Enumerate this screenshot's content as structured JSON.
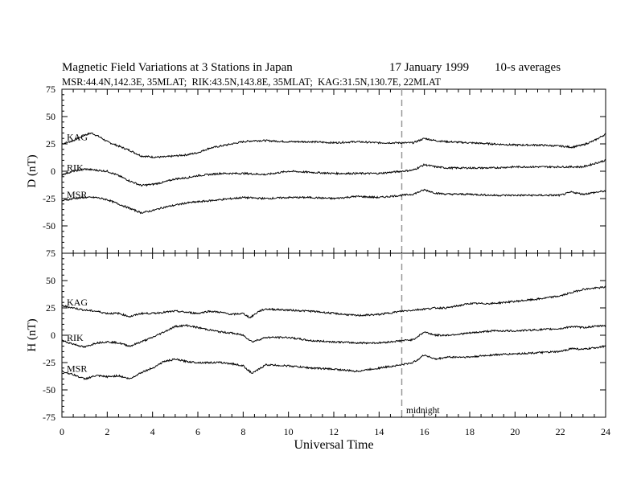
{
  "title": {
    "main": "Magnetic Field Variations at 3 Stations in Japan",
    "date": "17 January 1999",
    "averaging": "10-s averages",
    "stations_line": "MSR:44.4N,142.3E, 35MLAT;  RIK:43.5N,143.8E, 35MLAT;  KAG:31.5N,130.7E, 22MLAT"
  },
  "xlabel": "Universal Time",
  "midnight_label": "midnight",
  "colors": {
    "trace": "#000000",
    "marker": "#999999"
  },
  "chart_data": [
    {
      "type": "line",
      "ylabel": "D (nT)",
      "xlim": [
        0,
        24
      ],
      "ylim": [
        -75,
        75
      ],
      "xticks": [
        0,
        2,
        4,
        6,
        8,
        10,
        12,
        14,
        16,
        18,
        20,
        22,
        24
      ],
      "yticks": [
        -75,
        -50,
        -25,
        0,
        25,
        50,
        75
      ],
      "marker_x": 15,
      "series": [
        {
          "name": "KAG",
          "x": [
            0,
            0.5,
            1,
            1.3,
            1.7,
            2,
            2.5,
            3,
            3.5,
            4,
            4.5,
            5,
            5.5,
            6,
            6.5,
            7,
            7.5,
            8,
            8.5,
            9,
            10,
            11,
            12,
            13,
            14,
            15,
            15.5,
            16,
            16.5,
            17,
            18,
            19,
            20,
            21,
            22,
            22.5,
            23,
            23.5,
            24
          ],
          "values": [
            25,
            28,
            33,
            35,
            31,
            27,
            23,
            19,
            14,
            13,
            13,
            14,
            15,
            17,
            21,
            23,
            25,
            27,
            28,
            28,
            27,
            27,
            26,
            27,
            26,
            26,
            26,
            30,
            28,
            27,
            26,
            25,
            24,
            24,
            23,
            22,
            24,
            28,
            34
          ]
        },
        {
          "name": "RIK",
          "x": [
            0,
            0.5,
            1,
            1.5,
            2,
            2.5,
            3,
            3.5,
            4,
            4.5,
            5,
            5.5,
            6,
            7,
            8,
            9,
            10,
            11,
            12,
            13,
            14,
            15,
            15.5,
            16,
            16.5,
            17,
            18,
            19,
            20,
            21,
            22,
            23,
            23.5,
            24
          ],
          "values": [
            -3,
            0,
            2,
            1,
            0,
            -4,
            -9,
            -13,
            -12,
            -10,
            -7,
            -6,
            -4,
            -2,
            -2,
            -3,
            0,
            -1,
            -2,
            -2,
            -2,
            0,
            1,
            6,
            4,
            3,
            3,
            3,
            4,
            4,
            4,
            4,
            7,
            10
          ]
        },
        {
          "name": "MSR",
          "x": [
            0,
            0.5,
            1,
            1.5,
            2,
            2.5,
            3,
            3.5,
            4,
            4.5,
            5,
            5.5,
            6,
            7,
            8,
            9,
            10,
            11,
            12,
            13,
            14,
            15,
            15.5,
            16,
            16.5,
            17,
            18,
            19,
            20,
            21,
            22,
            22.5,
            23,
            24
          ],
          "values": [
            -27,
            -25,
            -24,
            -24,
            -26,
            -30,
            -34,
            -38,
            -36,
            -33,
            -31,
            -29,
            -28,
            -26,
            -24,
            -25,
            -24,
            -24,
            -25,
            -23,
            -24,
            -22,
            -21,
            -17,
            -20,
            -21,
            -21,
            -22,
            -22,
            -22,
            -22,
            -19,
            -21,
            -18
          ]
        }
      ]
    },
    {
      "type": "line",
      "ylabel": "H (nT)",
      "xlim": [
        0,
        24
      ],
      "ylim": [
        -75,
        75
      ],
      "xticks": [
        0,
        2,
        4,
        6,
        8,
        10,
        12,
        14,
        16,
        18,
        20,
        22,
        24
      ],
      "yticks": [
        -75,
        -50,
        -25,
        0,
        25,
        50,
        75
      ],
      "marker_x": 15,
      "series": [
        {
          "name": "KAG",
          "x": [
            0,
            0.5,
            1,
            1.5,
            2,
            2.5,
            3,
            3.5,
            4,
            4.5,
            5,
            5.5,
            6,
            6.5,
            7,
            7.5,
            8,
            8.3,
            8.7,
            9,
            10,
            11,
            12,
            13,
            14,
            15,
            15.5,
            16,
            16.5,
            17,
            18,
            19,
            20,
            21,
            22,
            23,
            24
          ],
          "values": [
            27,
            25,
            23,
            22,
            20,
            20,
            17,
            20,
            20,
            21,
            22,
            21,
            20,
            22,
            21,
            19,
            20,
            16,
            22,
            24,
            23,
            22,
            20,
            18,
            19,
            22,
            23,
            24,
            25,
            25,
            29,
            29,
            31,
            33,
            36,
            42,
            44
          ]
        },
        {
          "name": "RIK",
          "x": [
            0,
            0.5,
            1,
            1.5,
            2,
            2.5,
            3,
            3.5,
            4,
            4.5,
            5,
            5.5,
            6,
            6.5,
            7,
            7.5,
            8,
            8.4,
            9,
            10,
            11,
            12,
            13,
            14,
            15,
            15.5,
            16,
            16.5,
            17,
            18,
            19,
            20,
            21,
            22,
            22.5,
            23,
            24
          ],
          "values": [
            -5,
            -8,
            -11,
            -7,
            -6,
            -7,
            -10,
            -6,
            -2,
            3,
            8,
            9,
            7,
            5,
            3,
            2,
            0,
            -6,
            -2,
            -2,
            -5,
            -6,
            -7,
            -7,
            -5,
            -4,
            3,
            0,
            0,
            2,
            4,
            4,
            5,
            6,
            8,
            7,
            9
          ]
        },
        {
          "name": "MSR",
          "x": [
            0,
            0.5,
            1,
            1.5,
            2,
            2.5,
            3,
            3.5,
            4,
            4.5,
            5,
            5.5,
            6,
            6.5,
            7,
            7.5,
            8,
            8.4,
            9,
            10,
            11,
            12,
            13,
            14,
            15,
            15.5,
            16,
            16.5,
            17,
            18,
            19,
            20,
            21,
            22,
            22.5,
            23,
            24
          ],
          "values": [
            -33,
            -36,
            -40,
            -37,
            -38,
            -37,
            -40,
            -34,
            -30,
            -24,
            -22,
            -24,
            -25,
            -25,
            -25,
            -26,
            -28,
            -35,
            -27,
            -28,
            -30,
            -31,
            -33,
            -30,
            -27,
            -25,
            -18,
            -22,
            -20,
            -20,
            -18,
            -17,
            -16,
            -15,
            -12,
            -13,
            -10
          ]
        }
      ]
    }
  ]
}
